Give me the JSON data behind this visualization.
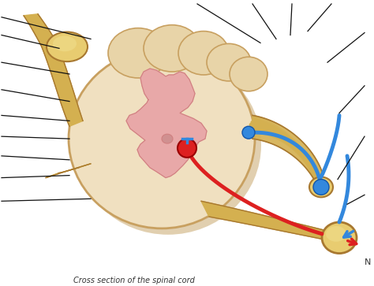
{
  "background_color": "#ffffff",
  "spinal_cord": {
    "outer_color": "#e8d4a8",
    "outer_border": "#c8a060",
    "outer_shadow": "#c8a870",
    "gray_matter_color": "#e8a8a8",
    "gray_matter_border": "#d08080",
    "white_matter_color": "#f0e0c0",
    "lobe_color": "#e8d4a8",
    "lobe_border": "#c8a060"
  },
  "nerve": {
    "yellow": "#d4b050",
    "yellow_light": "#e8cc70",
    "yellow_border": "#a87830",
    "yellow_dark": "#b89040"
  },
  "nerve_colors": {
    "red": "#dd2020",
    "blue": "#3388dd"
  },
  "figsize": [
    4.74,
    3.63
  ],
  "dpi": 100
}
